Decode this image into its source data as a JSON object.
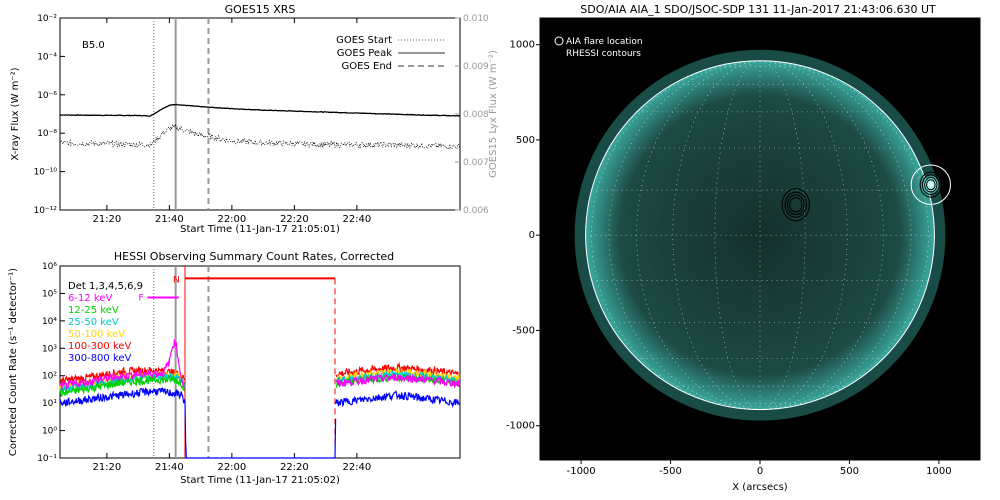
{
  "chart_data": [
    {
      "type": "line",
      "title": "GOES15 XRS",
      "xlabel": "Start Time (11-Jan-17 21:05:01)",
      "ylabel": "X-ray Flux (W m⁻²)",
      "ylabel_right": "GOES15 Lyx Flux (W m⁻²)",
      "x_ticks": [
        "21:20",
        "21:40",
        "22:00",
        "22:20",
        "22:40"
      ],
      "x_tick_minutes": [
        20,
        40,
        60,
        80,
        100
      ],
      "xlim_minutes": [
        5,
        133
      ],
      "ylim_log10": [
        -12,
        -2
      ],
      "y_tick_exponents": [
        -12,
        -10,
        -8,
        -6,
        -4,
        -2
      ],
      "y_tick_labels": [
        "10⁻¹²",
        "10⁻¹⁰",
        "10⁻⁸",
        "10⁻⁶",
        "10⁻⁴",
        "10⁻²"
      ],
      "ylim_right": [
        0.006,
        0.01
      ],
      "y_ticks_right": [
        "0.006",
        "0.007",
        "0.008",
        "0.009",
        "0.010"
      ],
      "class_label": "B5.0",
      "legend": [
        "GOES Start",
        "GOES Peak",
        "GOES End"
      ],
      "legend_placement": "top-right",
      "markers_minutes": {
        "start": 35,
        "peak": 42,
        "end": 52.5
      },
      "series": [
        {
          "name": "long",
          "style": "solid",
          "x": [
            5,
            20,
            30,
            34,
            36,
            38,
            40,
            42,
            45,
            50,
            60,
            70,
            80,
            90,
            100,
            110,
            120,
            133
          ],
          "log10_values": [
            -7.05,
            -7.07,
            -7.08,
            -7.1,
            -6.9,
            -6.7,
            -6.55,
            -6.5,
            -6.55,
            -6.62,
            -6.72,
            -6.8,
            -6.85,
            -6.9,
            -6.95,
            -7.0,
            -7.05,
            -7.1
          ]
        },
        {
          "name": "short",
          "style": "dotted",
          "x": [
            5,
            20,
            30,
            34,
            36,
            38,
            40,
            42,
            45,
            50,
            60,
            70,
            80,
            90,
            100,
            110,
            120,
            133
          ],
          "log10_values": [
            -8.5,
            -8.55,
            -8.6,
            -8.6,
            -8.3,
            -8.0,
            -7.75,
            -7.7,
            -7.85,
            -8.1,
            -8.4,
            -8.5,
            -8.55,
            -8.6,
            -8.6,
            -8.6,
            -8.65,
            -8.7
          ]
        }
      ]
    },
    {
      "type": "line",
      "title": "HESSI Observing Summary Count Rates, Corrected",
      "xlabel": "Start Time (11-Jan-17 21:05:02)",
      "ylabel": "Corrected Count Rate (s⁻¹ detector⁻¹)",
      "x_ticks": [
        "21:20",
        "21:40",
        "22:00",
        "22:20",
        "22:40"
      ],
      "x_tick_minutes": [
        20,
        40,
        60,
        80,
        100
      ],
      "xlim_minutes": [
        5,
        133
      ],
      "ylim_log10": [
        -1,
        6
      ],
      "y_tick_exponents": [
        -1,
        0,
        1,
        2,
        3,
        4,
        5,
        6
      ],
      "y_tick_labels": [
        "10⁻¹",
        "10⁰",
        "10¹",
        "10²",
        "10³",
        "10⁴",
        "10⁵",
        "10⁶"
      ],
      "legend_title": "Det 1,3,4,5,6,9",
      "legend_placement": "top-left",
      "annotations": {
        "flag_f": "F",
        "flag_n": "N"
      },
      "flag_f": {
        "x_start": 33,
        "x_end": 43,
        "log10_y": 4.85
      },
      "flag_n_bar": {
        "x_start": 45,
        "x_end": 93,
        "log10_y": 5.55
      },
      "markers_minutes": {
        "start": 35,
        "peak": 42,
        "end": 52.5,
        "night_start": 45,
        "night_end": 93
      },
      "series": [
        {
          "name": "6-12 keV",
          "color": "#ff00ff",
          "x": [
            5,
            20,
            30,
            38,
            40,
            41,
            42,
            43,
            44,
            45
          ],
          "log10_values": [
            1.6,
            1.9,
            2.05,
            2.1,
            2.5,
            3.1,
            3.25,
            2.5,
            1.8,
            1.5
          ]
        },
        {
          "name": "12-25 keV",
          "color": "#00d000",
          "x": [
            5,
            15,
            25,
            35,
            42,
            44,
            45
          ],
          "log10_values": [
            1.35,
            1.55,
            1.75,
            1.85,
            1.85,
            1.7,
            1.5
          ]
        },
        {
          "name": "25-50 keV",
          "color": "#00c8c8",
          "x": [
            5,
            15,
            25,
            35,
            42,
            44,
            45
          ],
          "log10_values": [
            1.5,
            1.65,
            1.85,
            1.95,
            1.95,
            1.8,
            1.6
          ]
        },
        {
          "name": "50-100 keV",
          "color": "#ffd700",
          "x": [
            5,
            15,
            25,
            35,
            42,
            44,
            45
          ],
          "log10_values": [
            1.6,
            1.75,
            1.95,
            2.05,
            2.0,
            1.9,
            1.7
          ]
        },
        {
          "name": "100-300 keV",
          "color": "#ff0000",
          "x": [
            5,
            15,
            25,
            35,
            42,
            44,
            45
          ],
          "log10_values": [
            1.8,
            1.95,
            2.15,
            2.2,
            2.1,
            2.0,
            1.8
          ]
        },
        {
          "name": "300-800 keV",
          "color": "#0000ff",
          "x": [
            5,
            15,
            25,
            35,
            42,
            44,
            45,
            45.3,
            93,
            93.3
          ],
          "log10_values": [
            1.0,
            1.15,
            1.3,
            1.45,
            1.35,
            1.3,
            1.0,
            -1,
            -1,
            1.0
          ]
        }
      ],
      "post_night": {
        "x_start": 93,
        "x_end": 133,
        "log10_values_by_series": {
          "6-12 keV": [
            1.7,
            1.85,
            1.95,
            1.85,
            1.7
          ],
          "300-800 keV": [
            1.0,
            1.15,
            1.3,
            1.15,
            1.0
          ]
        }
      }
    },
    {
      "type": "heatmap",
      "title": "SDO/AIA AIA_1 SDO/JSOC-SDP 131 11-Jan-2017 21:43:06.630 UT",
      "xlabel": "X (arcsecs)",
      "ylabel": "",
      "xlim": [
        -1230,
        1230
      ],
      "ylim": [
        -1180,
        1140
      ],
      "x_ticks": [
        -1000,
        -500,
        0,
        500,
        1000
      ],
      "y_ticks": [
        -1000,
        -500,
        0,
        500,
        1000
      ],
      "legend": [
        "AIA flare location",
        "RHESSI contours"
      ],
      "legend_placement": "top-left",
      "solar_radius_arcsec": 975,
      "flare_location": {
        "x": 955,
        "y": 265
      },
      "rhessi_contours": [
        {
          "x": 955,
          "y": 265,
          "radii": [
            70,
            55,
            40,
            28
          ]
        },
        {
          "x": 200,
          "y": 160,
          "radii": [
            90,
            70,
            55,
            40
          ]
        }
      ],
      "colors": {
        "background": "#000000",
        "disk": "#2f8f86",
        "limb": "#5ff5e6",
        "flare": "#c8fff5"
      }
    }
  ]
}
